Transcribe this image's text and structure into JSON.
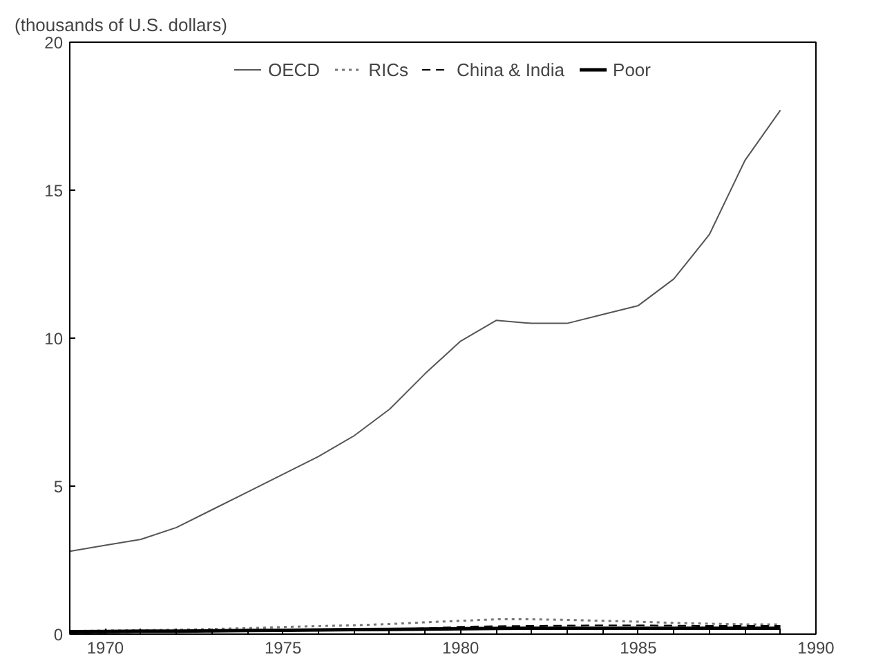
{
  "chart_data": {
    "type": "line",
    "ylabel": "(thousands of U.S. dollars)",
    "x": [
      1969,
      1970,
      1971,
      1972,
      1973,
      1974,
      1975,
      1976,
      1977,
      1978,
      1979,
      1980,
      1981,
      1982,
      1983,
      1984,
      1985,
      1986,
      1987,
      1988,
      1989
    ],
    "series": [
      {
        "name": "OECD",
        "color": "#555555",
        "line_style": "solid",
        "values": [
          2.8,
          3.0,
          3.2,
          3.6,
          4.2,
          4.8,
          5.4,
          6.0,
          6.7,
          7.6,
          8.8,
          9.9,
          10.6,
          10.5,
          10.5,
          10.8,
          11.1,
          12.0,
          13.5,
          16.0,
          17.7
        ]
      },
      {
        "name": "RICs",
        "color": "#777777",
        "line_style": "dotted",
        "values": [
          0.1,
          0.12,
          0.13,
          0.15,
          0.17,
          0.2,
          0.24,
          0.27,
          0.3,
          0.34,
          0.4,
          0.45,
          0.5,
          0.5,
          0.48,
          0.45,
          0.42,
          0.38,
          0.35,
          0.33,
          0.33
        ]
      },
      {
        "name": "China & India",
        "color": "#000000",
        "line_style": "dashed",
        "values": [
          0.05,
          0.06,
          0.07,
          0.08,
          0.09,
          0.1,
          0.11,
          0.12,
          0.14,
          0.16,
          0.2,
          0.25,
          0.27,
          0.28,
          0.29,
          0.3,
          0.3,
          0.29,
          0.28,
          0.28,
          0.28
        ]
      },
      {
        "name": "Poor",
        "color": "#000000",
        "line_style": "solid",
        "values": [
          0.08,
          0.09,
          0.1,
          0.1,
          0.11,
          0.12,
          0.13,
          0.14,
          0.15,
          0.16,
          0.17,
          0.18,
          0.19,
          0.2,
          0.2,
          0.2,
          0.2,
          0.2,
          0.2,
          0.2,
          0.2
        ]
      }
    ],
    "xlim": [
      1969,
      1990
    ],
    "xticks": [
      1970,
      1975,
      1980,
      1985,
      1990
    ],
    "ylim": [
      0,
      20
    ],
    "yticks": [
      0,
      5,
      10,
      15,
      20
    ],
    "grid": false,
    "legend": "top"
  }
}
